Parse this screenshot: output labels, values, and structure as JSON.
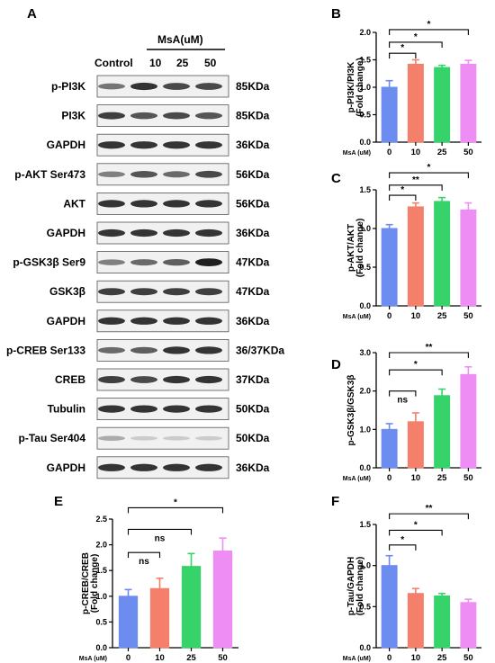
{
  "figure": {
    "blot_panel": {
      "letter": "A",
      "group_label": "MsA(uM)",
      "lane_labels": [
        "Control",
        "10",
        "25",
        "50"
      ],
      "rows": [
        {
          "label": "p-PI3K",
          "kda": "85KDa",
          "intensity": [
            0.55,
            0.85,
            0.75,
            0.75
          ]
        },
        {
          "label": "PI3K",
          "kda": "85KDa",
          "intensity": [
            0.8,
            0.7,
            0.75,
            0.7
          ]
        },
        {
          "label": "GAPDH",
          "kda": "36KDa",
          "intensity": [
            0.85,
            0.85,
            0.85,
            0.85
          ]
        },
        {
          "label": "p-AKT Ser473",
          "kda": "56KDa",
          "intensity": [
            0.5,
            0.7,
            0.6,
            0.75
          ]
        },
        {
          "label": "AKT",
          "kda": "56KDa",
          "intensity": [
            0.85,
            0.85,
            0.85,
            0.85
          ]
        },
        {
          "label": "GAPDH",
          "kda": "36KDa",
          "intensity": [
            0.85,
            0.85,
            0.85,
            0.85
          ]
        },
        {
          "label": "p-GSK3β Ser9",
          "kda": "47KDa",
          "intensity": [
            0.5,
            0.6,
            0.65,
            0.95
          ]
        },
        {
          "label": "GSK3β",
          "kda": "47KDa",
          "intensity": [
            0.8,
            0.8,
            0.8,
            0.8
          ]
        },
        {
          "label": "GAPDH",
          "kda": "36KDa",
          "intensity": [
            0.85,
            0.85,
            0.85,
            0.85
          ]
        },
        {
          "label": "p-CREB Ser133",
          "kda": "36/37KDa",
          "intensity": [
            0.6,
            0.65,
            0.85,
            0.85
          ]
        },
        {
          "label": "CREB",
          "kda": "37KDa",
          "intensity": [
            0.8,
            0.75,
            0.85,
            0.85
          ]
        },
        {
          "label": "Tubulin",
          "kda": "50KDa",
          "intensity": [
            0.85,
            0.85,
            0.85,
            0.85
          ]
        },
        {
          "label": "p-Tau Ser404",
          "kda": "50KDa",
          "intensity": [
            0.3,
            0.15,
            0.15,
            0.15
          ]
        },
        {
          "label": "GAPDH",
          "kda": "36KDa",
          "intensity": [
            0.85,
            0.85,
            0.85,
            0.85
          ]
        }
      ]
    }
  },
  "chart_data": [
    {
      "panel": "B",
      "type": "bar",
      "ylabel": "p-PI3K/PI3K",
      "ylabel2": "(Fold change)",
      "xlabel": "MsA (uM)",
      "categories": [
        "0",
        "10",
        "25",
        "50"
      ],
      "values": [
        1.0,
        1.42,
        1.36,
        1.42
      ],
      "errors": [
        0.12,
        0.08,
        0.04,
        0.07
      ],
      "ylim": [
        0,
        2.0
      ],
      "yticks": [
        "0.0",
        "0.5",
        "1.0",
        "1.5",
        "2.0"
      ],
      "yticks_num": [
        0,
        0.5,
        1.0,
        1.5,
        2.0
      ],
      "colors": [
        "#6d8cf0",
        "#f47f6b",
        "#35d36a",
        "#ee8ef5"
      ],
      "comparisons": [
        {
          "from": 0,
          "to": 1,
          "label": "*",
          "y": 1.62
        },
        {
          "from": 0,
          "to": 2,
          "label": "*",
          "y": 1.82
        },
        {
          "from": 0,
          "to": 3,
          "label": "*",
          "y": 2.05
        }
      ]
    },
    {
      "panel": "C",
      "type": "bar",
      "ylabel": "p-AKT/AKT",
      "ylabel2": "(Fold change)",
      "xlabel": "MsA (uM)",
      "categories": [
        "0",
        "10",
        "25",
        "50"
      ],
      "values": [
        1.0,
        1.28,
        1.35,
        1.24
      ],
      "errors": [
        0.05,
        0.05,
        0.05,
        0.09
      ],
      "ylim": [
        0,
        1.5
      ],
      "yticks": [
        "0.0",
        "0.5",
        "1.0",
        "1.5"
      ],
      "yticks_num": [
        0,
        0.5,
        1.0,
        1.5
      ],
      "colors": [
        "#6d8cf0",
        "#f47f6b",
        "#35d36a",
        "#ee8ef5"
      ],
      "comparisons": [
        {
          "from": 0,
          "to": 1,
          "label": "*",
          "y": 1.43
        },
        {
          "from": 0,
          "to": 2,
          "label": "**",
          "y": 1.56
        },
        {
          "from": 0,
          "to": 3,
          "label": "*",
          "y": 1.72
        }
      ]
    },
    {
      "panel": "D",
      "type": "bar",
      "ylabel": "p-GSK3β/GSK3β",
      "ylabel2": "",
      "xlabel": "MsA (uM)",
      "categories": [
        "0",
        "10",
        "25",
        "50"
      ],
      "values": [
        1.0,
        1.2,
        1.88,
        2.43
      ],
      "errors": [
        0.15,
        0.23,
        0.17,
        0.2
      ],
      "ylim": [
        0,
        3.0
      ],
      "yticks": [
        "0.0",
        "1.0",
        "2.0",
        "3.0"
      ],
      "yticks_num": [
        0,
        1.0,
        2.0,
        3.0
      ],
      "colors": [
        "#6d8cf0",
        "#f47f6b",
        "#35d36a",
        "#ee8ef5"
      ],
      "comparisons": [
        {
          "from": 0,
          "to": 1,
          "label": "ns",
          "y": 2.0
        },
        {
          "from": 0,
          "to": 2,
          "label": "*",
          "y": 2.55
        },
        {
          "from": 0,
          "to": 3,
          "label": "**",
          "y": 3.0
        }
      ]
    },
    {
      "panel": "E",
      "type": "bar",
      "ylabel": "p-CREB/CREB",
      "ylabel2": "(Fold change)",
      "xlabel": "MsA (uM)",
      "categories": [
        "0",
        "10",
        "25",
        "50"
      ],
      "values": [
        1.0,
        1.15,
        1.58,
        1.88
      ],
      "errors": [
        0.13,
        0.2,
        0.25,
        0.25
      ],
      "ylim": [
        0,
        2.5
      ],
      "yticks": [
        "0.0",
        "0.5",
        "1.0",
        "1.5",
        "2.0",
        "2.5"
      ],
      "yticks_num": [
        0,
        0.5,
        1.0,
        1.5,
        2.0,
        2.5
      ],
      "colors": [
        "#6d8cf0",
        "#f47f6b",
        "#35d36a",
        "#ee8ef5"
      ],
      "comparisons": [
        {
          "from": 0,
          "to": 1,
          "label": "ns",
          "y": 1.85
        },
        {
          "from": 0,
          "to": 2,
          "label": "ns",
          "y": 2.3
        },
        {
          "from": 0,
          "to": 3,
          "label": "*",
          "y": 2.72
        }
      ]
    },
    {
      "panel": "F",
      "type": "bar",
      "ylabel": "p-Tau/GAPDH",
      "ylabel2": "(Fold change)",
      "xlabel": "MsA (uM)",
      "categories": [
        "0",
        "10",
        "25",
        "50"
      ],
      "values": [
        1.0,
        0.66,
        0.63,
        0.55
      ],
      "errors": [
        0.12,
        0.06,
        0.03,
        0.04
      ],
      "ylim": [
        0,
        1.5
      ],
      "yticks": [
        "0.0",
        "0.5",
        "1.0",
        "1.5"
      ],
      "yticks_num": [
        0,
        0.5,
        1.0,
        1.5
      ],
      "colors": [
        "#6d8cf0",
        "#f47f6b",
        "#35d36a",
        "#ee8ef5"
      ],
      "comparisons": [
        {
          "from": 0,
          "to": 1,
          "label": "*",
          "y": 1.25
        },
        {
          "from": 0,
          "to": 2,
          "label": "*",
          "y": 1.43
        },
        {
          "from": 0,
          "to": 3,
          "label": "**",
          "y": 1.63
        }
      ]
    }
  ]
}
